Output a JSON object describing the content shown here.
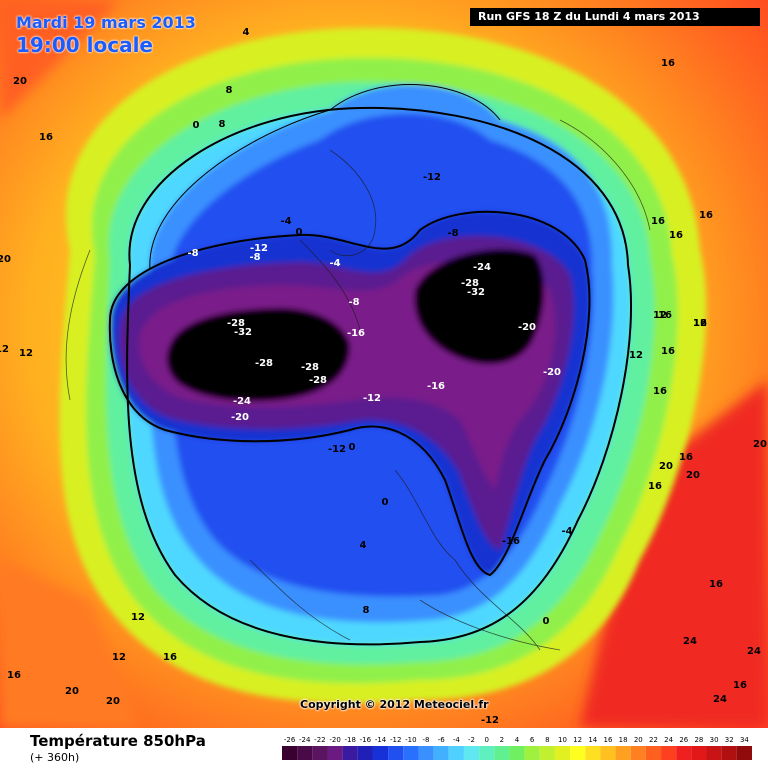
{
  "header": {
    "date": "Mardi 19 mars 2013",
    "time": "19:00 locale",
    "run": "Run GFS 18 Z du Lundi 4 mars 2013"
  },
  "copyright": "Copyright © 2012 Meteociel.fr",
  "footer": {
    "title": "Température 850hPa",
    "subtitle": "(+ 360h)"
  },
  "legend": {
    "ticks": [
      "-26",
      "-24",
      "-22",
      "-20",
      "-18",
      "-16",
      "-14",
      "-12",
      "-10",
      "-8",
      "-6",
      "-4",
      "-2",
      "0",
      "2",
      "4",
      "6",
      "8",
      "10",
      "12",
      "14",
      "16",
      "18",
      "20",
      "22",
      "24",
      "26",
      "28",
      "30",
      "32",
      "34"
    ],
    "colors": [
      "#3a0030",
      "#4a0a48",
      "#5a1460",
      "#6a1a80",
      "#3a1aa0",
      "#2020b8",
      "#1830d8",
      "#2050f0",
      "#2a70ff",
      "#3a90ff",
      "#40b0ff",
      "#50d0ff",
      "#60e8f0",
      "#60f0c0",
      "#60f090",
      "#70f060",
      "#a0f040",
      "#c0f030",
      "#e0f020",
      "#ffff20",
      "#ffe020",
      "#ffc020",
      "#ffa020",
      "#ff8020",
      "#ff6020",
      "#ff4020",
      "#f02020",
      "#e01818",
      "#c81414",
      "#b01010",
      "#900c0c"
    ]
  },
  "map_labels": [
    {
      "text": "4"
    },
    {
      "text": "16"
    },
    {
      "text": "20"
    },
    {
      "text": "16"
    },
    {
      "text": "8"
    },
    {
      "text": "8"
    },
    {
      "text": "0"
    },
    {
      "text": "16"
    },
    {
      "text": "16"
    },
    {
      "text": "20"
    },
    {
      "text": "12"
    },
    {
      "text": "-12"
    },
    {
      "text": "-8"
    },
    {
      "text": "-4"
    },
    {
      "text": "0"
    },
    {
      "text": "-8"
    },
    {
      "text": "-12"
    },
    {
      "text": "-8"
    },
    {
      "text": "-4"
    },
    {
      "text": "-8"
    },
    {
      "text": "-16"
    },
    {
      "text": "-28"
    },
    {
      "text": "-32"
    },
    {
      "text": "-28"
    },
    {
      "text": "-28"
    },
    {
      "text": "-28"
    },
    {
      "text": "-24"
    },
    {
      "text": "-20"
    },
    {
      "text": "-24"
    },
    {
      "text": "-28"
    },
    {
      "text": "-32"
    },
    {
      "text": "-20"
    },
    {
      "text": "-20"
    },
    {
      "text": "-16"
    },
    {
      "text": "-12"
    },
    {
      "text": "0"
    },
    {
      "text": "-12"
    },
    {
      "text": "0"
    },
    {
      "text": "-16"
    },
    {
      "text": "-4"
    },
    {
      "text": "0"
    },
    {
      "text": "16"
    },
    {
      "text": "16"
    },
    {
      "text": "16"
    },
    {
      "text": "12"
    },
    {
      "text": "12"
    },
    {
      "text": "16"
    },
    {
      "text": "16"
    },
    {
      "text": "20"
    },
    {
      "text": "16"
    },
    {
      "text": "20"
    },
    {
      "text": "16"
    },
    {
      "text": "20"
    },
    {
      "text": "24"
    },
    {
      "text": "24"
    },
    {
      "text": "24"
    },
    {
      "text": "12"
    },
    {
      "text": "12"
    },
    {
      "text": "16"
    },
    {
      "text": "8"
    },
    {
      "text": "4"
    },
    {
      "text": "20"
    },
    {
      "text": "20"
    },
    {
      "text": "16"
    },
    {
      "text": "12"
    },
    {
      "text": "-12"
    },
    {
      "text": "16"
    },
    {
      "text": "12"
    },
    {
      "text": "16"
    }
  ]
}
